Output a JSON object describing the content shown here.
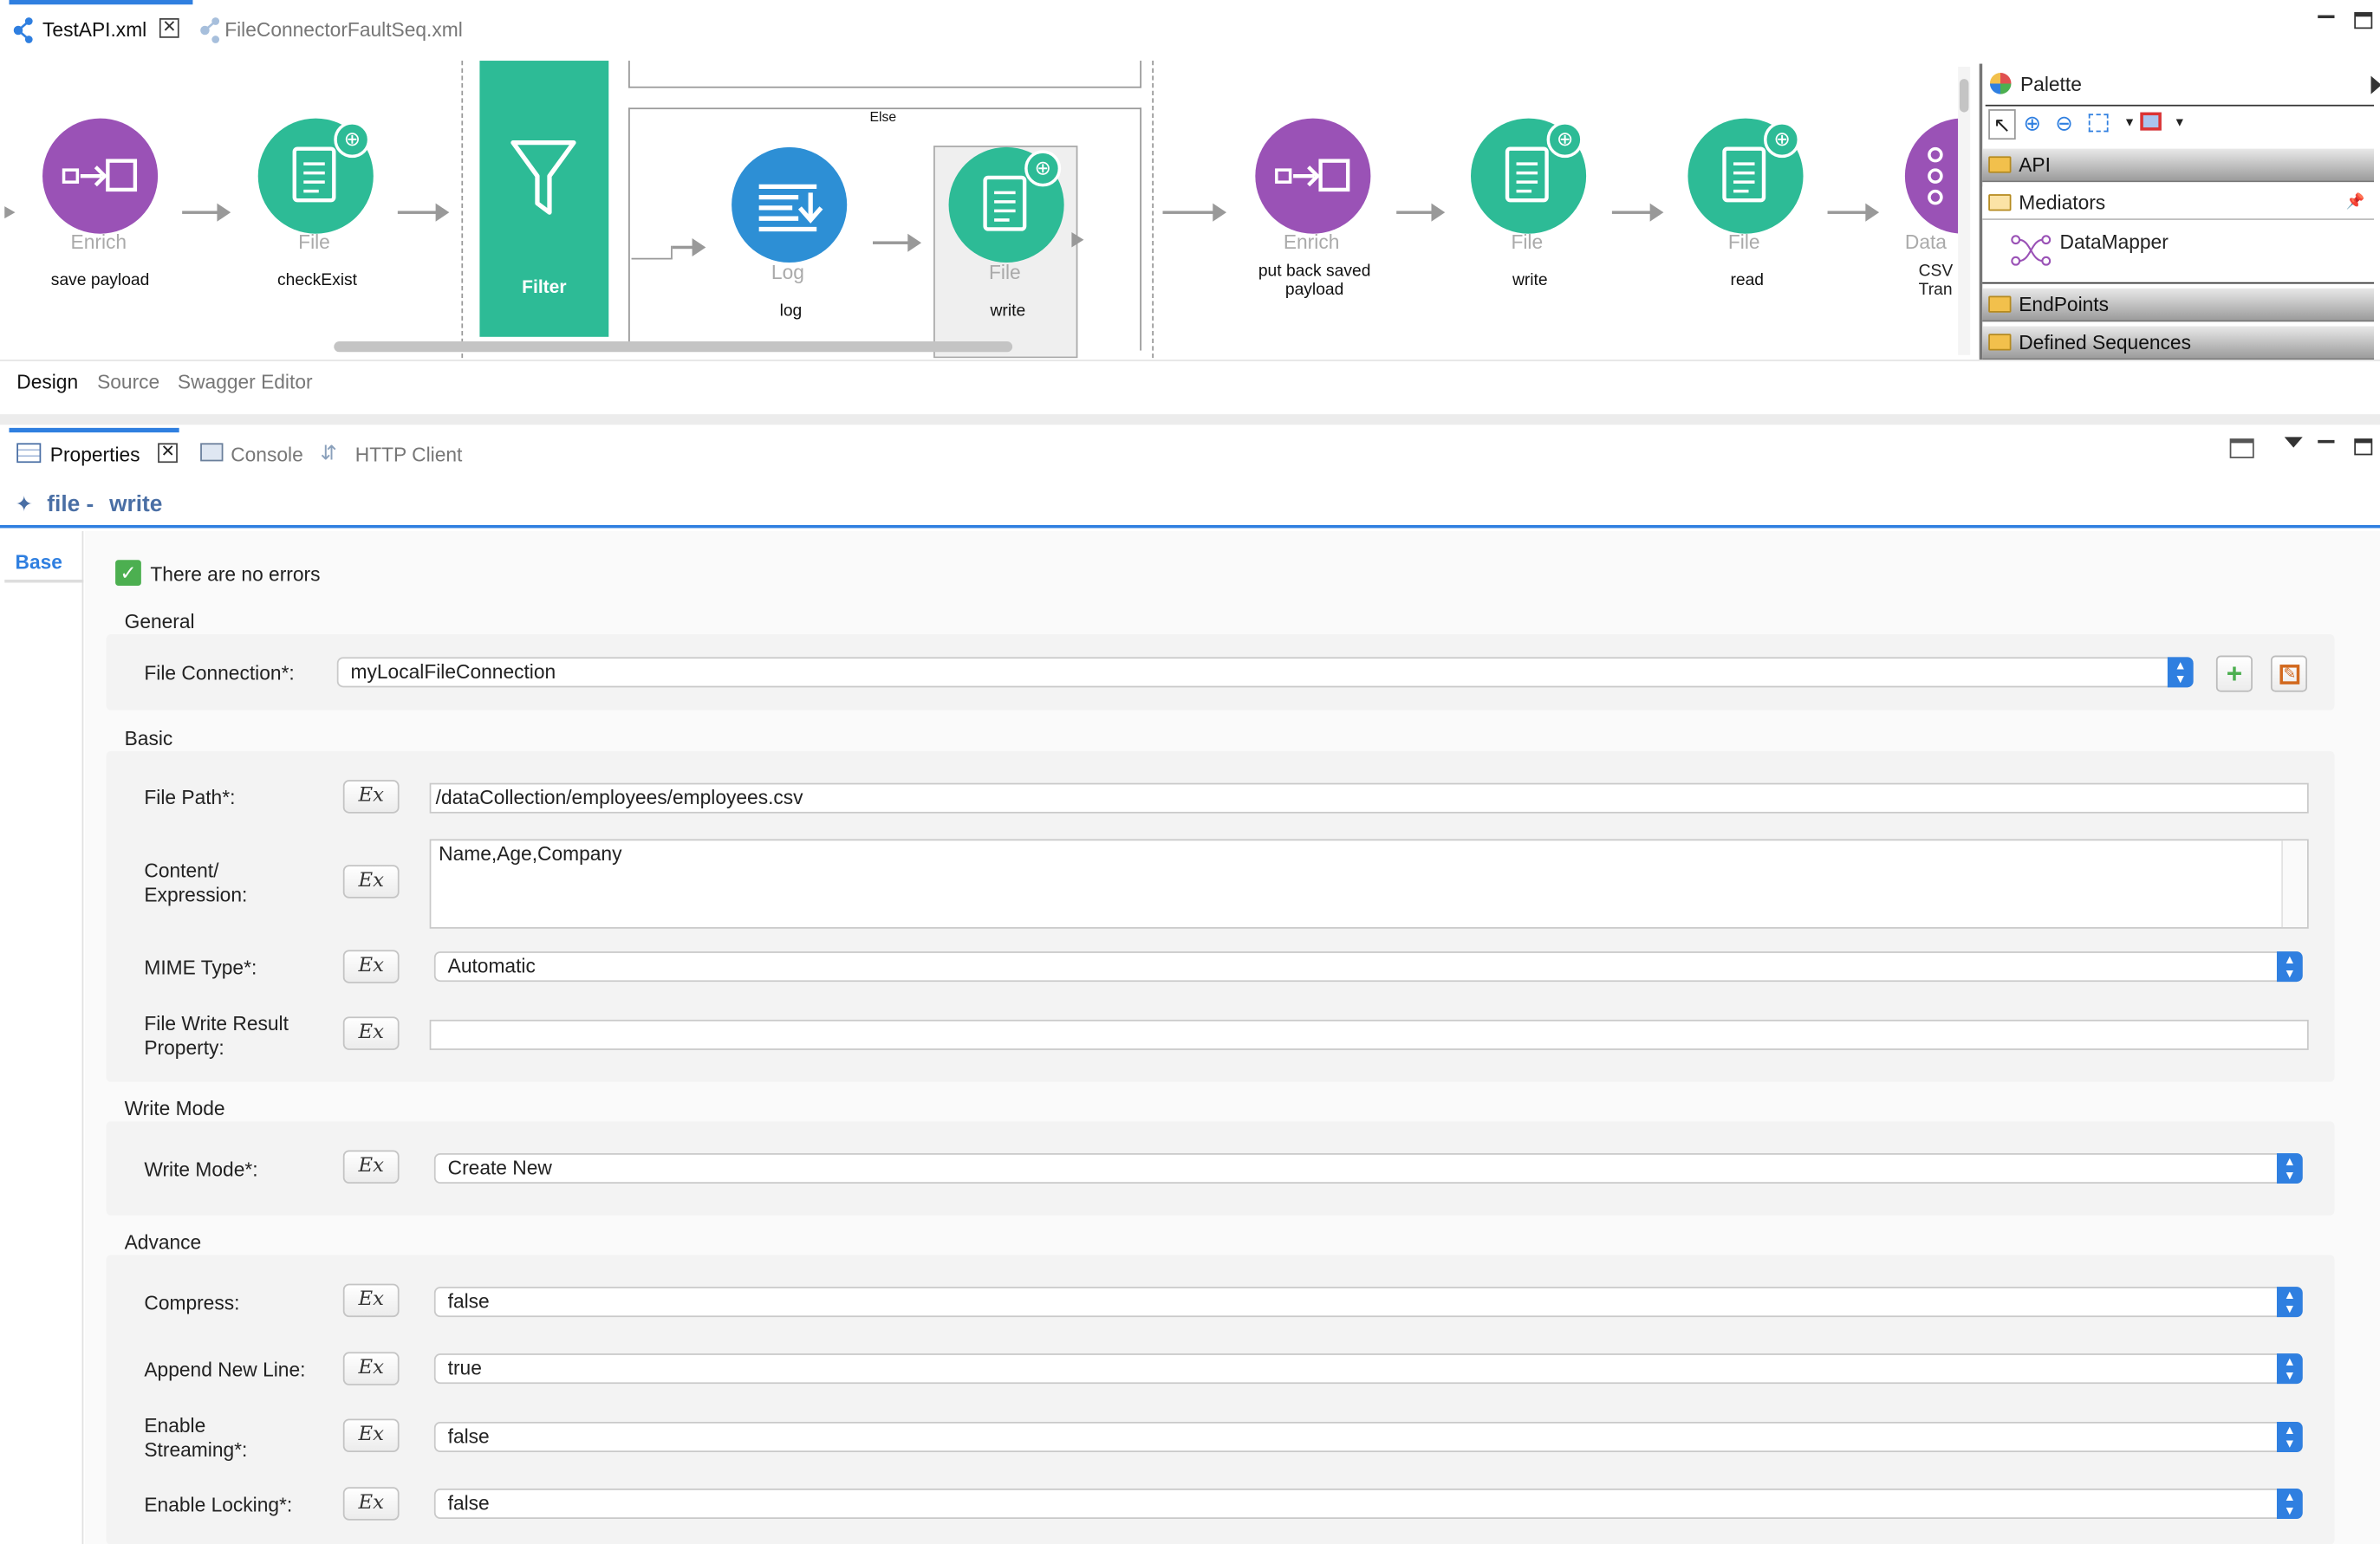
{
  "editor_tabs": [
    {
      "label": "TestAPI.xml",
      "active": true
    },
    {
      "label": "FileConnectorFaultSeq.xml",
      "active": false
    }
  ],
  "canvas": {
    "nodes": [
      {
        "type": "Enrich",
        "label": "save payload",
        "color": "#9a52b6",
        "icon": "enrich-icon"
      },
      {
        "type": "File",
        "label": "checkExist",
        "color": "#2dbb96",
        "icon": "file-icon"
      },
      {
        "type": "Log",
        "label": "log",
        "color": "#2d8fd5",
        "icon": "log-icon"
      },
      {
        "type": "File",
        "label": "write",
        "color": "#2dbb96",
        "icon": "file-icon"
      },
      {
        "type": "Enrich",
        "label": "put back saved payload",
        "color": "#9a52b6",
        "icon": "enrich-icon"
      },
      {
        "type": "File",
        "label": "write",
        "color": "#2dbb96",
        "icon": "file-icon"
      },
      {
        "type": "File",
        "label": "read",
        "color": "#2dbb96",
        "icon": "file-icon"
      },
      {
        "type": "Data",
        "label": "CSV Tran",
        "color": "#9a52b6",
        "icon": "datamapper-icon"
      }
    ],
    "filter_label": "Filter",
    "else_label": "Else"
  },
  "palette": {
    "title": "Palette",
    "groups": [
      "API",
      "Mediators",
      "EndPoints",
      "Defined Sequences"
    ],
    "mediators_items": [
      "DataMapper"
    ]
  },
  "bottom_tabs": [
    "Design",
    "Source",
    "Swagger Editor"
  ],
  "view_tabs": [
    "Properties",
    "Console",
    "HTTP Client"
  ],
  "properties": {
    "title_prefix": "file -",
    "title_name": "write",
    "side_tab": "Base",
    "status": "There are no errors",
    "sections": {
      "general": "General",
      "basic": "Basic",
      "write_mode": "Write Mode",
      "advance": "Advance"
    },
    "file_connection": {
      "label": "File Connection*:",
      "value": "myLocalFileConnection"
    },
    "file_path": {
      "label": "File Path*:",
      "value": "/dataCollection/employees/employees.csv"
    },
    "content": {
      "label1": "Content/",
      "label2": "Expression:",
      "value": "Name,Age,Company"
    },
    "mime": {
      "label": "MIME Type*:",
      "value": "Automatic"
    },
    "result_prop": {
      "label1": "File Write Result",
      "label2": "Property:",
      "value": ""
    },
    "write_mode": {
      "label": "Write Mode*:",
      "value": "Create New"
    },
    "compress": {
      "label": "Compress:",
      "value": "false"
    },
    "append": {
      "label": "Append New Line:",
      "value": "true"
    },
    "streaming": {
      "label1": "Enable",
      "label2": "Streaming*:",
      "value": "false"
    },
    "locking": {
      "label": "Enable Locking*:",
      "value": "false"
    },
    "ex_label": "Ex"
  }
}
